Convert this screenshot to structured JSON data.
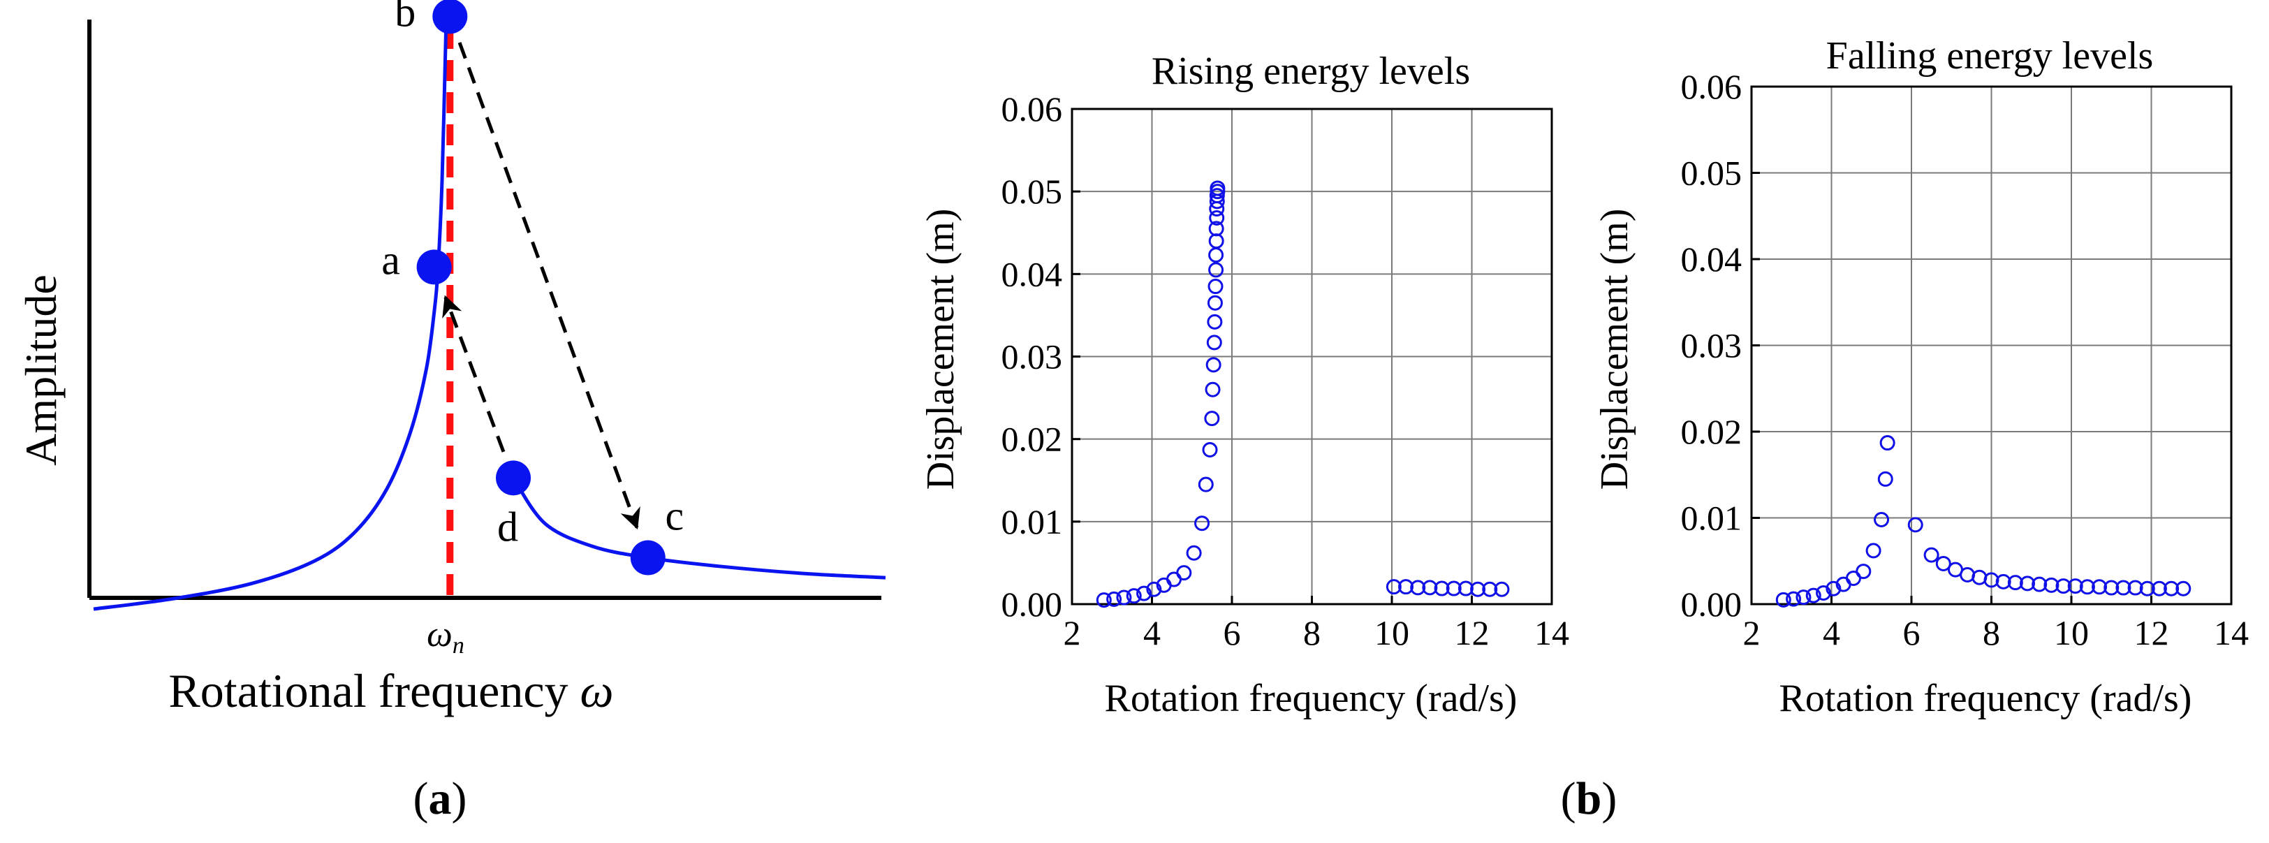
{
  "colors": {
    "curve": "#0a14f0",
    "marker": "#0a14f0",
    "marker_edge": "#1010e8",
    "resonance_line": "#ff1010",
    "arrow": "#000000",
    "axis": "#000000",
    "grid": "#7a7a7a"
  },
  "chart_data": [
    {
      "id": "a",
      "type": "line",
      "panel_label": "(a)",
      "panel_label_letter": "a",
      "xlabel": "Rotational frequency ",
      "xlabel_symbol": "ω",
      "ylabel": "Amplitude",
      "x_tick_main": "ω",
      "x_tick_sub": "n",
      "xlim": [
        0,
        10
      ],
      "ylim": [
        0,
        10
      ],
      "resonance_x": 4.5,
      "curve_lower": {
        "x": [
          0,
          1,
          2,
          2.8,
          3.3,
          3.7,
          4.0,
          4.2,
          4.3,
          4.35,
          4.4,
          4.45
        ],
        "y": [
          0,
          0.18,
          0.45,
          0.85,
          1.35,
          2.1,
          3.1,
          4.2,
          5.2,
          6.0,
          7.5,
          10.2
        ]
      },
      "curve_upper": {
        "x": [
          5.3,
          5.7,
          6.3,
          7.0,
          7.9,
          9.0,
          10.0
        ],
        "y": [
          2.3,
          1.5,
          1.1,
          0.9,
          0.75,
          0.62,
          0.55
        ]
      },
      "points": [
        {
          "label": "a",
          "x": 4.3,
          "y": 6.0
        },
        {
          "label": "b",
          "x": 4.5,
          "y": 10.4
        },
        {
          "label": "c",
          "x": 7.0,
          "y": 0.9
        },
        {
          "label": "d",
          "x": 5.3,
          "y": 2.3
        }
      ],
      "jumps": [
        {
          "from": "b",
          "to": "c"
        },
        {
          "from": "d",
          "to": "a"
        }
      ]
    },
    {
      "id": "b1",
      "type": "scatter",
      "title": "Rising energy levels",
      "xlabel": "Rotation frequency (rad/s)",
      "ylabel": "Displacement (m)",
      "xlim": [
        2,
        14
      ],
      "ylim": [
        0,
        0.06
      ],
      "xticks": [
        2,
        4,
        6,
        8,
        10,
        12,
        14
      ],
      "xtick_labels": [
        "2",
        "4",
        "6",
        "8",
        "10",
        "12",
        "14"
      ],
      "yticks": [
        0,
        0.01,
        0.02,
        0.03,
        0.04,
        0.05,
        0.06
      ],
      "ytick_labels": [
        "0.00",
        "0.01",
        "0.02",
        "0.03",
        "0.04",
        "0.05",
        "0.06"
      ],
      "grid": true,
      "x": [
        2.8,
        3.05,
        3.3,
        3.55,
        3.8,
        4.05,
        4.3,
        4.55,
        4.8,
        5.05,
        5.25,
        5.35,
        5.45,
        5.5,
        5.52,
        5.54,
        5.56,
        5.57,
        5.58,
        5.59,
        5.6,
        5.6,
        5.61,
        5.61,
        5.62,
        5.62,
        5.63,
        5.63,
        5.64,
        5.64,
        10.05,
        10.35,
        10.65,
        10.95,
        11.25,
        11.55,
        11.85,
        12.15,
        12.45,
        12.75
      ],
      "y": [
        0.0005,
        0.0006,
        0.0008,
        0.001,
        0.0013,
        0.0018,
        0.0023,
        0.003,
        0.0038,
        0.0062,
        0.0098,
        0.0145,
        0.0187,
        0.0225,
        0.026,
        0.029,
        0.0317,
        0.0342,
        0.0365,
        0.0385,
        0.0405,
        0.0423,
        0.044,
        0.0455,
        0.0468,
        0.0479,
        0.0488,
        0.0495,
        0.05,
        0.0504,
        0.0021,
        0.0021,
        0.002,
        0.002,
        0.0019,
        0.0019,
        0.0019,
        0.0018,
        0.0018,
        0.0018
      ]
    },
    {
      "id": "b2",
      "type": "scatter",
      "title": "Falling energy levels",
      "xlabel": "Rotation frequency (rad/s)",
      "ylabel": "Displacement (m)",
      "xlim": [
        2,
        14
      ],
      "ylim": [
        0,
        0.06
      ],
      "xticks": [
        2,
        4,
        6,
        8,
        10,
        12,
        14
      ],
      "xtick_labels": [
        "2",
        "4",
        "6",
        "8",
        "10",
        "12",
        "14"
      ],
      "yticks": [
        0,
        0.01,
        0.02,
        0.03,
        0.04,
        0.05,
        0.06
      ],
      "ytick_labels": [
        "0.00",
        "0.01",
        "0.02",
        "0.03",
        "0.04",
        "0.05",
        "0.06"
      ],
      "grid": true,
      "x": [
        2.8,
        3.05,
        3.3,
        3.55,
        3.8,
        4.05,
        4.3,
        4.55,
        4.8,
        5.05,
        5.25,
        5.35,
        5.4,
        6.1,
        6.5,
        6.8,
        7.1,
        7.4,
        7.7,
        8.0,
        8.3,
        8.6,
        8.9,
        9.2,
        9.5,
        9.8,
        10.1,
        10.4,
        10.7,
        11.0,
        11.3,
        11.6,
        11.9,
        12.2,
        12.5,
        12.8
      ],
      "y": [
        0.0005,
        0.0006,
        0.0008,
        0.001,
        0.0013,
        0.0018,
        0.0023,
        0.003,
        0.0038,
        0.0062,
        0.0098,
        0.0145,
        0.0187,
        0.0092,
        0.0057,
        0.0047,
        0.004,
        0.0034,
        0.0031,
        0.0028,
        0.0026,
        0.0025,
        0.0024,
        0.0023,
        0.0022,
        0.0021,
        0.0021,
        0.002,
        0.002,
        0.0019,
        0.0019,
        0.0019,
        0.0018,
        0.0018,
        0.0018,
        0.0018
      ]
    }
  ],
  "panel_b_label": "(b)",
  "panel_b_label_letter": "b"
}
